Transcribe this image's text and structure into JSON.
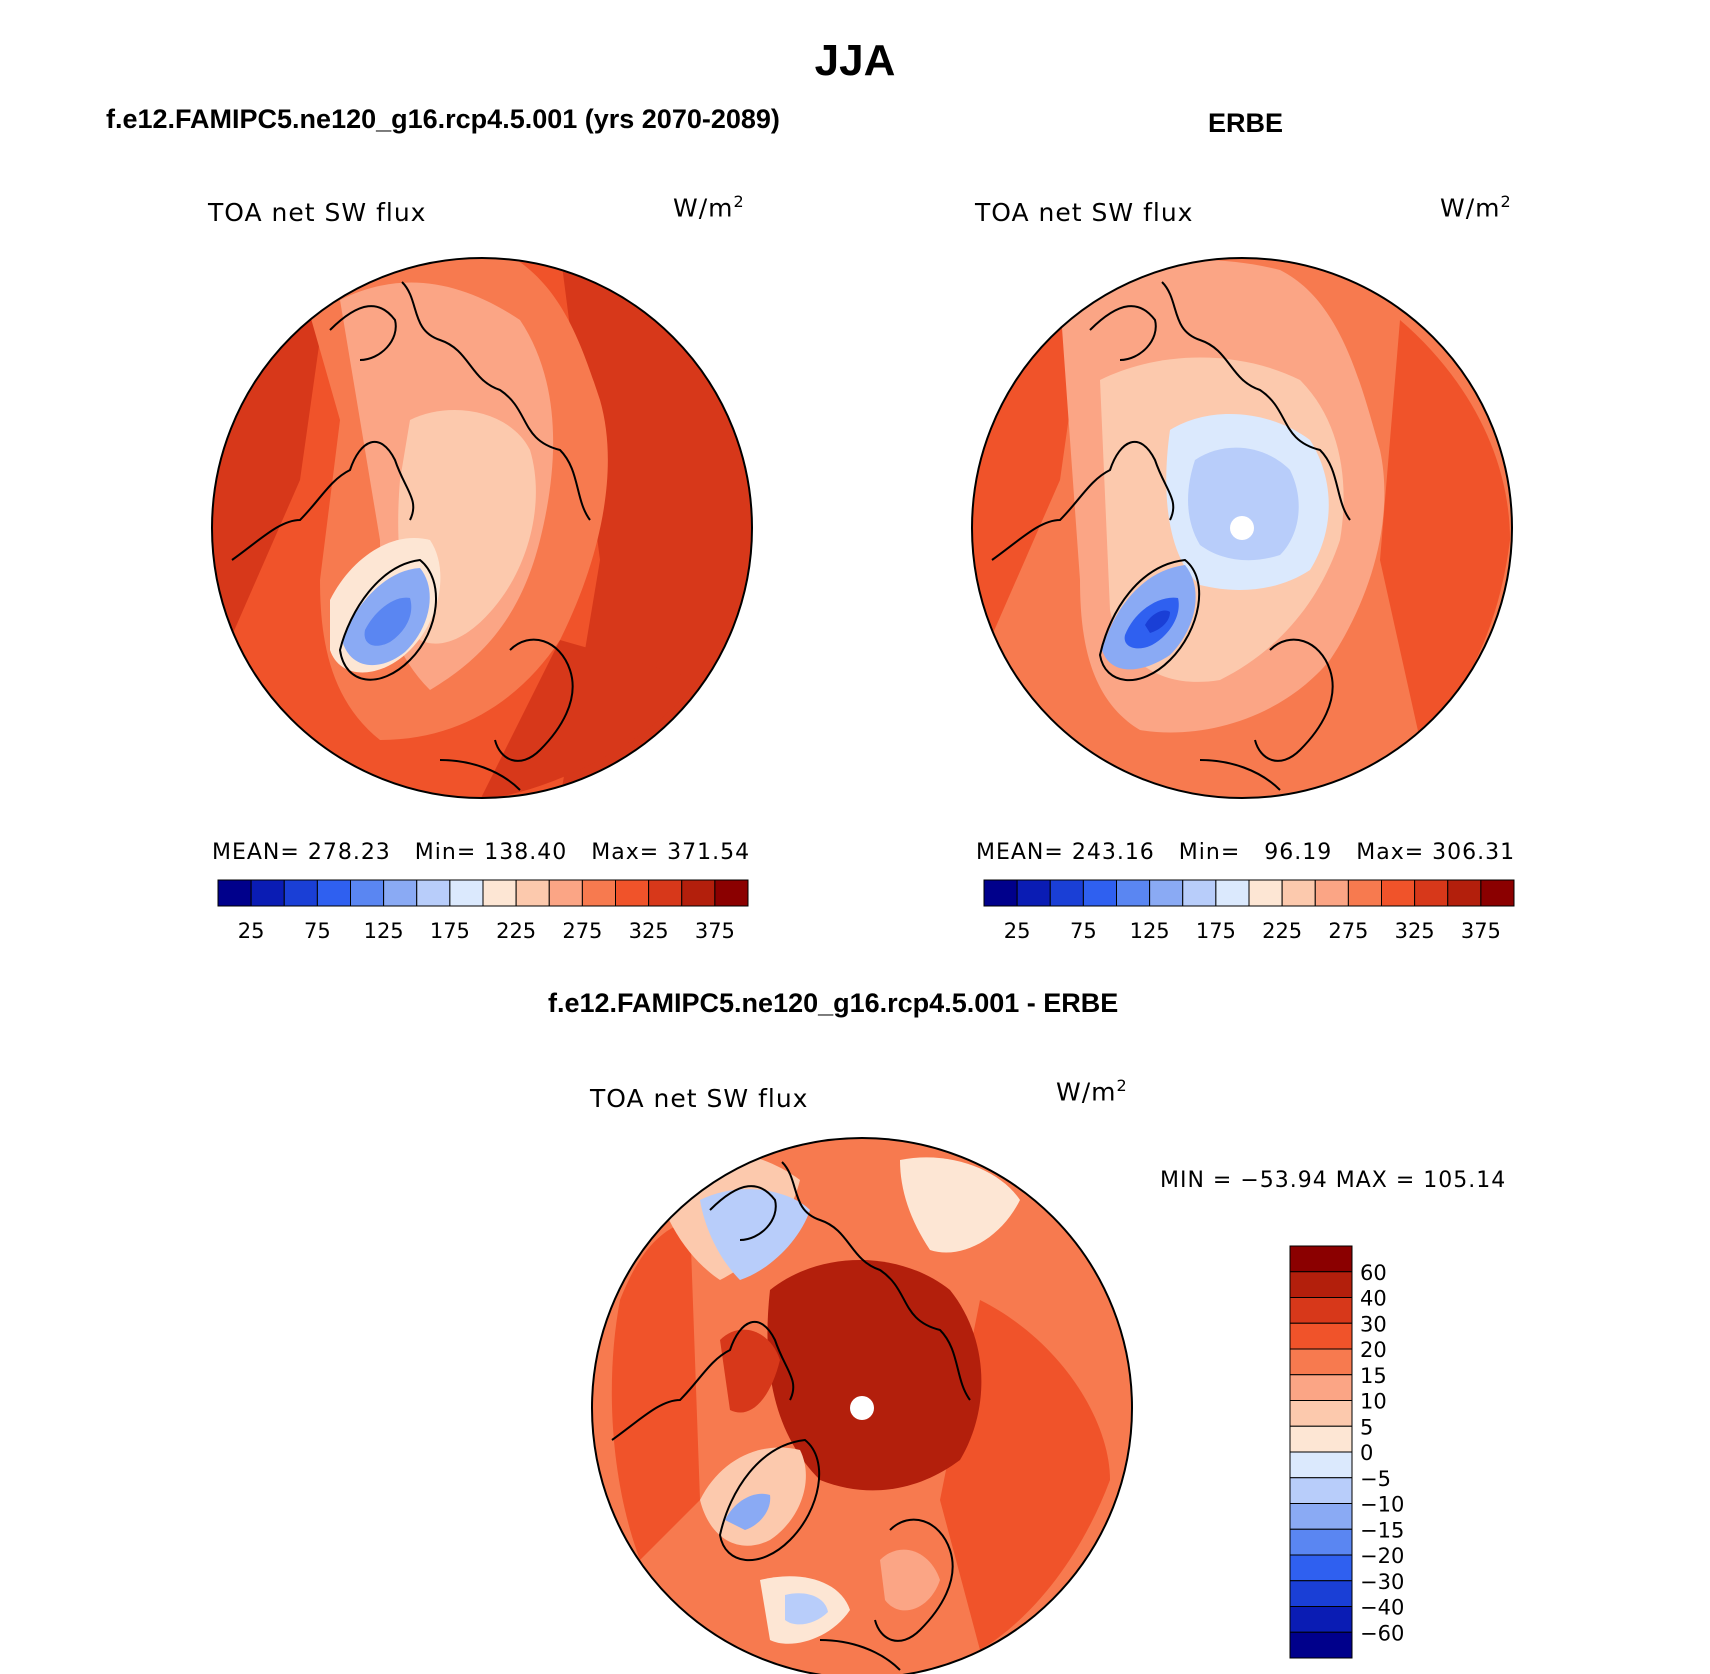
{
  "title": "JJA",
  "colors": {
    "levels": [
      "#00008b",
      "#0a1cb4",
      "#1a3fd6",
      "#2f60f0",
      "#5a86f2",
      "#8aaaf4",
      "#b8cdfa",
      "#dbe9fd",
      "#fde6d4",
      "#fcc9ad",
      "#fba585",
      "#f77a4f",
      "#f0532a",
      "#d7381a",
      "#b31f0c",
      "#8b0000"
    ],
    "coast": "#000000",
    "pole": "#ffffff"
  },
  "panels": [
    {
      "id": "model",
      "title": "f.e12.FAMIPC5.ne120_g16.rcp4.5.001 (yrs 2070-2089)",
      "variable": "TOA net SW flux",
      "units_base": "W/m",
      "units_exp": "2",
      "stats": {
        "mean_label": "MEAN=",
        "mean": "278.23",
        "min_label": "Min=",
        "min": "138.40",
        "max_label": "Max=",
        "max": "371.54"
      },
      "colorbar_ticks": [
        "25",
        "75",
        "125",
        "175",
        "225",
        "275",
        "325",
        "375"
      ]
    },
    {
      "id": "obs",
      "title": "ERBE",
      "variable": "TOA net SW flux",
      "units_base": "W/m",
      "units_exp": "2",
      "stats": {
        "mean_label": "MEAN=",
        "mean": "243.16",
        "min_label": "Min=",
        "min": "96.19",
        "max_label": "Max=",
        "max": "306.31"
      },
      "colorbar_ticks": [
        "25",
        "75",
        "125",
        "175",
        "225",
        "275",
        "325",
        "375"
      ]
    },
    {
      "id": "diff",
      "title": "f.e12.FAMIPC5.ne120_g16.rcp4.5.001 - ERBE",
      "variable": "TOA net SW flux",
      "units_base": "W/m",
      "units_exp": "2",
      "minmax_text": "MIN = −53.94 MAX = 105.14",
      "colorbar_ticks": [
        "60",
        "40",
        "30",
        "20",
        "15",
        "10",
        "5",
        "0",
        "−5",
        "−10",
        "−15",
        "−20",
        "−30",
        "−40",
        "−60"
      ]
    }
  ],
  "chart_data": [
    {
      "type": "heatmap",
      "title": "TOA net SW flux",
      "panel_title": "f.e12.FAMIPC5.ne120_g16.rcp4.5.001 (yrs 2070-2089)",
      "units": "W/m2",
      "projection": "north polar stereographic",
      "mean": 278.23,
      "min": 138.4,
      "max": 371.54,
      "levels": [
        25,
        50,
        75,
        100,
        125,
        150,
        175,
        200,
        225,
        250,
        275,
        300,
        325,
        350,
        375
      ],
      "colorbar_ticks": [
        25,
        75,
        125,
        175,
        225,
        275,
        325,
        375
      ],
      "legend": "bottom-horizontal"
    },
    {
      "type": "heatmap",
      "title": "TOA net SW flux",
      "panel_title": "ERBE",
      "units": "W/m2",
      "projection": "north polar stereographic",
      "mean": 243.16,
      "min": 96.19,
      "max": 306.31,
      "levels": [
        25,
        50,
        75,
        100,
        125,
        150,
        175,
        200,
        225,
        250,
        275,
        300,
        325,
        350,
        375
      ],
      "colorbar_ticks": [
        25,
        75,
        125,
        175,
        225,
        275,
        325,
        375
      ],
      "legend": "bottom-horizontal"
    },
    {
      "type": "heatmap",
      "title": "TOA net SW flux",
      "panel_title": "f.e12.FAMIPC5.ne120_g16.rcp4.5.001 - ERBE",
      "units": "W/m2",
      "projection": "north polar stereographic",
      "min": -53.94,
      "max": 105.14,
      "levels": [
        -60,
        -40,
        -30,
        -20,
        -15,
        -10,
        -5,
        0,
        5,
        10,
        15,
        20,
        30,
        40,
        60
      ],
      "colorbar_ticks": [
        60,
        40,
        30,
        20,
        15,
        10,
        5,
        0,
        -5,
        -10,
        -15,
        -20,
        -30,
        -40,
        -60
      ],
      "legend": "right-vertical"
    }
  ]
}
